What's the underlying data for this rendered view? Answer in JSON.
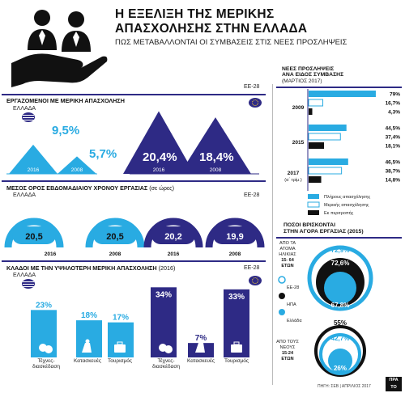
{
  "header": {
    "title_line1": "Η ΕΞΕΛΙΞΗ ΤΗΣ ΜΕΡΙΚΗΣ",
    "title_line2": "ΑΠΑΣΧΟΛΗΣΗΣ ΣΤΗΝ ΕΛΛΑΔΑ",
    "subtitle": "ΠΩΣ ΜΕΤΑΒΑΛΛΟΝΤΑΙ ΟΙ ΣΥΜΒΑΣΕΙΣ ΣΤΙΣ ΝΕΕΣ ΠΡΟΣΛΗΨΕΙΣ"
  },
  "colors": {
    "cyan": "#29abe2",
    "navy": "#2e2a85",
    "black": "#111111"
  },
  "footer": {
    "source": "ΠΗΓΗ: ΣΕΒ | ΑΠΡΙΛΙΟΣ 2017",
    "logo": "ΠΡΑ ΤΟ"
  },
  "chart_data": [
    {
      "id": "employed_part_time",
      "type": "bar",
      "title": "ΕΡΓΑΖΟΜΕΝΟΙ ΜΕ ΜΕΡΙΚΗ ΑΠΑΣΧΟΛΗΣΗ",
      "series": [
        {
          "name": "ΕΛΛΑΔΑ",
          "values": [
            9.5,
            5.7
          ],
          "labels": [
            "9,5%",
            "5,7%"
          ]
        },
        {
          "name": "ΕΕ-28",
          "values": [
            20.4,
            18.4
          ],
          "labels": [
            "20,4%",
            "18,4%"
          ]
        }
      ],
      "categories": [
        "2016",
        "2008"
      ]
    },
    {
      "id": "weekly_hours",
      "type": "bar",
      "title": "ΜΕΣΟΣ ΟΡΟΣ ΕΒΔΟΜΑΔΙΑΙΟΥ ΧΡΟΝΟΥ ΕΡΓΑΣΙΑΣ",
      "title_note": "(σε ώρες)",
      "series": [
        {
          "name": "ΕΛΛΑΔΑ",
          "values": [
            20.5,
            20.5
          ],
          "labels": [
            "20,5",
            "20,5"
          ]
        },
        {
          "name": "ΕΕ-28",
          "values": [
            20.2,
            19.9
          ],
          "labels": [
            "20,2",
            "19,9"
          ]
        }
      ],
      "categories": [
        "2016",
        "2008"
      ]
    },
    {
      "id": "sectors",
      "type": "bar",
      "title": "ΚΛΑΔΟΙ ΜΕ ΤΗΝ ΥΨΗΛΟΤΕΡΗ ΜΕΡΙΚΗ ΑΠΑΣΧΟΛΗΣΗ",
      "title_note": "(2016)",
      "categories": [
        "Τέχνες-\nδιασκέδαση",
        "Κατασκευές",
        "Τουρισμός"
      ],
      "series": [
        {
          "name": "ΕΛΛΑΔΑ",
          "values": [
            23,
            18,
            17
          ],
          "labels": [
            "23%",
            "18%",
            "17%"
          ]
        },
        {
          "name": "ΕΕ-28",
          "values": [
            34,
            7,
            33
          ],
          "labels": [
            "34%",
            "7%",
            "33%"
          ]
        }
      ]
    },
    {
      "id": "new_hires",
      "type": "bar",
      "title_line1": "ΝΕΕΣ ΠΡΟΣΛΗΨΕΙΣ",
      "title_line2": "ΑΝΑ ΕΙΔΟΣ ΣΥΜΒΑΣΗΣ",
      "title_note": "(ΜΑΡΤΙΟΣ 2017)",
      "categories": [
        "2009",
        "2015",
        "2017"
      ],
      "category_notes": [
        "",
        "",
        "(α΄ τρίμ.)"
      ],
      "series": [
        {
          "name": "Πλήρους απασχόλησης",
          "values": [
            79,
            44.5,
            46.5
          ],
          "labels": [
            "79%",
            "44,5%",
            "46,5%"
          ]
        },
        {
          "name": "Μερικής απασχόλησης",
          "values": [
            16.7,
            37.4,
            38.7
          ],
          "labels": [
            "16,7%",
            "37,4%",
            "38,7%"
          ]
        },
        {
          "name": "Εκ περιτροπής",
          "values": [
            4.3,
            18.1,
            14.8
          ],
          "labels": [
            "4,3%",
            "18,1%",
            "14,8%"
          ]
        }
      ]
    },
    {
      "id": "labour_market",
      "type": "pie",
      "title_line1": "ΠΟΣΟΙ ΒΡΙΣΚΟΝΤΑΙ",
      "title_line2": "ΣΤΗΝ ΑΓΟΡΑ ΕΡΓΑΣΙΑΣ (2015)",
      "legend": [
        "ΕΕ-28",
        "ΗΠΑ",
        "Ελλάδα"
      ],
      "groups": [
        {
          "label_lines": [
            "ΑΠΟ ΤΑ",
            "ΑΤΟΜΑ",
            "ΗΛΙΚΙΑΣ"
          ],
          "label_bold": [
            "15- 64",
            "ΕΤΩΝ"
          ],
          "values": [
            72.9,
            72.6,
            67.8
          ],
          "labels": [
            "72,9%",
            "72,6%",
            "67,8%"
          ]
        },
        {
          "label_lines": [
            "ΑΠΟ ΤΟΥΣ",
            "ΝΕΟΥΣ"
          ],
          "label_bold": [
            "15-24",
            "ΕΤΩΝ"
          ],
          "values": [
            55,
            42.7,
            26
          ],
          "labels": [
            "55%",
            "42,7%",
            "26%"
          ]
        }
      ]
    }
  ]
}
